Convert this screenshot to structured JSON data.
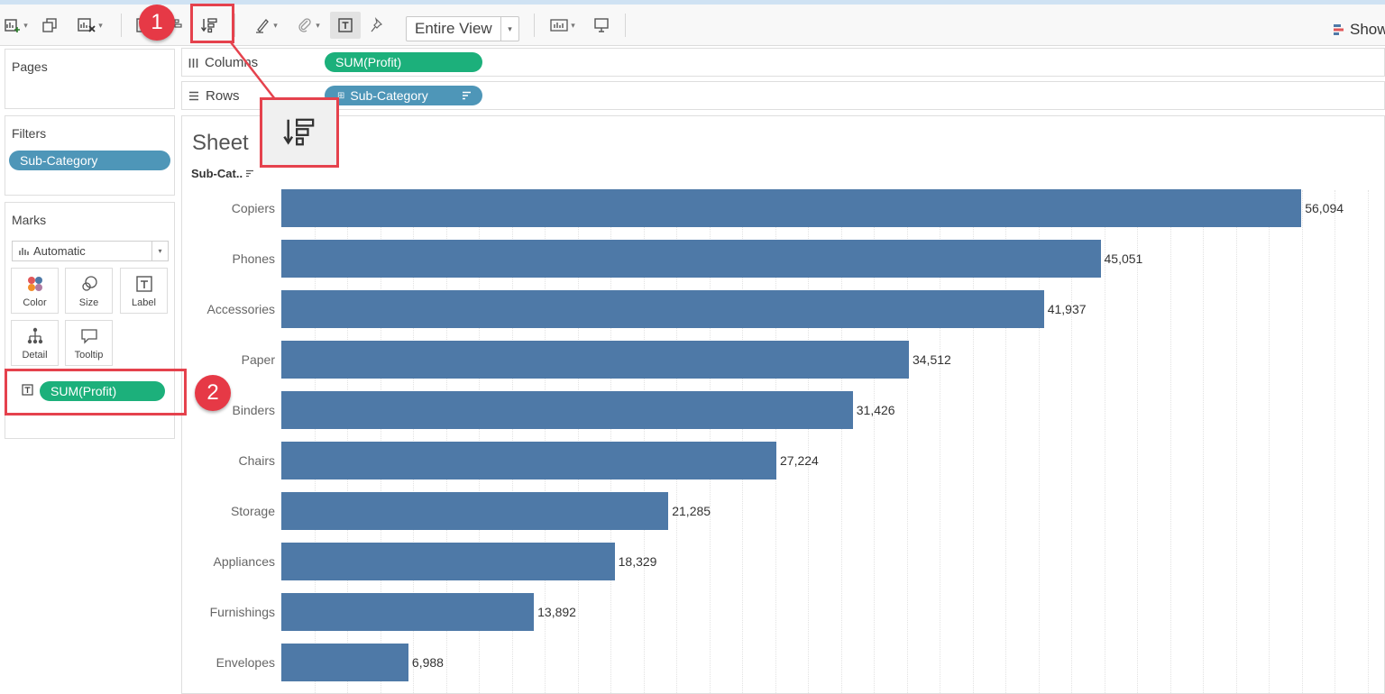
{
  "toolbar": {
    "view_mode": "Entire View",
    "show_me_label": "Show"
  },
  "left_panel": {
    "pages_title": "Pages",
    "filters_title": "Filters",
    "filter_pill": "Sub-Category",
    "marks_title": "Marks",
    "mark_type": "Automatic",
    "mark_buttons": [
      {
        "label": "Color",
        "icon": "color-dots-icon"
      },
      {
        "label": "Size",
        "icon": "size-circles-icon"
      },
      {
        "label": "Label",
        "icon": "text-label-icon"
      },
      {
        "label": "Detail",
        "icon": "detail-hierarchy-icon"
      },
      {
        "label": "Tooltip",
        "icon": "speech-bubble-icon"
      }
    ],
    "marks_field": "SUM(Profit)"
  },
  "shelves": {
    "columns_label": "Columns",
    "columns_pill": "SUM(Profit)",
    "rows_label": "Rows",
    "rows_pill": "Sub-Category"
  },
  "sheet": {
    "title": "Sheet",
    "axis_header": "Sub-Cat.."
  },
  "annotations": {
    "badge_1": "1",
    "badge_2": "2"
  },
  "colors": {
    "bar": "#4e79a7",
    "pill_green": "#1cb07b",
    "pill_blue": "#4e96b8",
    "highlight": "#e5424d"
  },
  "chart_data": {
    "type": "bar",
    "orientation": "horizontal",
    "categories": [
      "Copiers",
      "Phones",
      "Accessories",
      "Paper",
      "Binders",
      "Chairs",
      "Storage",
      "Appliances",
      "Furnishings",
      "Envelopes"
    ],
    "values": [
      56094,
      45051,
      41937,
      34512,
      31426,
      27224,
      21285,
      18329,
      13892,
      6988
    ],
    "value_labels": [
      "56,094",
      "45,051",
      "41,937",
      "34,512",
      "31,426",
      "27,224",
      "21,285",
      "18,329",
      "13,892",
      "6,988"
    ],
    "xlim": [
      0,
      60000
    ],
    "grid": true
  }
}
